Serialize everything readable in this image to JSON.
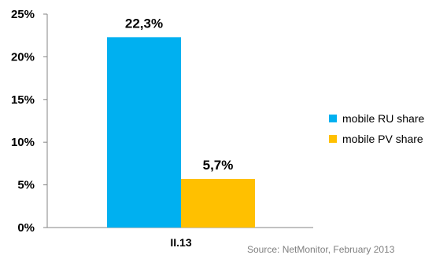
{
  "chart_data": {
    "type": "bar",
    "categories": [
      "II.13"
    ],
    "series": [
      {
        "name": "mobile RU share",
        "values": [
          22.3
        ],
        "color": "#00b0f0",
        "data_label": "22,3%"
      },
      {
        "name": "mobile PV share",
        "values": [
          5.7
        ],
        "color": "#ffc000",
        "data_label": "5,7%"
      }
    ],
    "y_ticks": [
      "0%",
      "5%",
      "10%",
      "15%",
      "20%",
      "25%"
    ],
    "ylim": [
      0,
      25
    ],
    "grid": false,
    "legend_position": "right"
  },
  "source_note": "Source: NetMonitor, February 2013"
}
